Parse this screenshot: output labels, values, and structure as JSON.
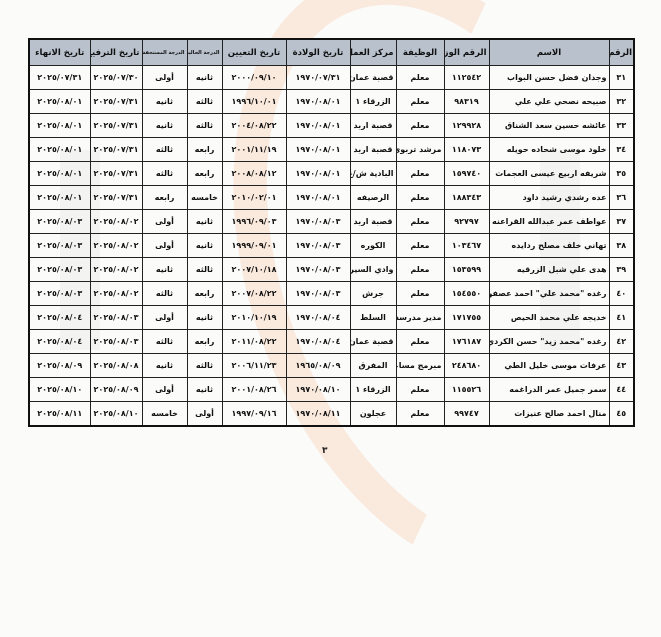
{
  "table": {
    "headers": [
      "الرقم",
      "الاسم",
      "الرقم الوزاري",
      "الوظيفة",
      "مركز العمل",
      "تاريخ الولادة",
      "تاريخ التعيين",
      "الدرجة الحالية",
      "الدرجة المستحقة",
      "تاريخ الترفيع",
      "تاريخ الانهاء"
    ],
    "rows": [
      [
        "٣١",
        "وجدان فضل حسن البواب",
        "١١٢٥٤٢",
        "معلم",
        "قصبة عمان",
        "١٩٧٠/٠٧/٣١",
        "٢٠٠٠/٠٩/١٠",
        "ثانيه",
        "أولى",
        "٢٠٢٥/٠٧/٣٠",
        "٢٠٢٥/٠٧/٣١"
      ],
      [
        "٣٢",
        "صبيحه نصحي علي علي",
        "٩٨٣١٩",
        "معلم",
        "الزرقاء ١",
        "١٩٧٠/٠٨/٠١",
        "١٩٩٦/١٠/٠١",
        "ثالثه",
        "ثانيه",
        "٢٠٢٥/٠٧/٣١",
        "٢٠٢٥/٠٨/٠١"
      ],
      [
        "٣٣",
        "عائشه حسين سعد الشناق",
        "١٢٩٩٢٨",
        "معلم",
        "قصبة اربد",
        "١٩٧٠/٠٨/٠١",
        "٢٠٠٤/٠٨/٢٢",
        "ثالثه",
        "ثانيه",
        "٢٠٢٥/٠٧/٣١",
        "٢٠٢٥/٠٨/٠١"
      ],
      [
        "٣٤",
        "خلود موسى شحاده حويله",
        "١١٨٠٧٣",
        "مرشد تربوي",
        "قصبة اربد",
        "١٩٧٠/٠٨/٠١",
        "٢٠٠١/١١/١٩",
        "رابعه",
        "ثالثه",
        "٢٠٢٥/٠٧/٣١",
        "٢٠٢٥/٠٨/٠١"
      ],
      [
        "٣٥",
        "شريفه اربيع عيسى العجمات",
        "١٥٩٧٤٠",
        "معلم",
        "البادية ش/غ",
        "١٩٧٠/٠٨/٠١",
        "٢٠٠٨/٠٨/١٢",
        "رابعه",
        "ثالثه",
        "٢٠٢٥/٠٧/٣١",
        "٢٠٢٥/٠٨/٠١"
      ],
      [
        "٣٦",
        "عده رشدي رشيد داود",
        "١٨٨٣٤٣",
        "معلم",
        "الرصيفه",
        "١٩٧٠/٠٨/٠١",
        "٢٠١٠/٠٢/٠١",
        "خامسه",
        "رابعه",
        "٢٠٢٥/٠٧/٣١",
        "٢٠٢٥/٠٨/٠١"
      ],
      [
        "٣٧",
        "عواطف عمر عبدالله القراعنه",
        "٩٢٧٩٧",
        "معلم",
        "قصبة اربد",
        "١٩٧٠/٠٨/٠٣",
        "١٩٩٦/٠٩/٠٣",
        "ثانيه",
        "أولى",
        "٢٠٢٥/٠٨/٠٢",
        "٢٠٢٥/٠٨/٠٣"
      ],
      [
        "٣٨",
        "تهاني خلف مصلح ردايده",
        "١٠٣٤٦٧",
        "معلم",
        "الكوره",
        "١٩٧٠/٠٨/٠٣",
        "١٩٩٩/٠٩/٠١",
        "ثانيه",
        "أولى",
        "٢٠٢٥/٠٨/٠٢",
        "٢٠٢٥/٠٨/٠٣"
      ],
      [
        "٣٩",
        "هدى علي شبل الزرقيه",
        "١٥٣٥٩٩",
        "معلم",
        "وادي السير",
        "١٩٧٠/٠٨/٠٣",
        "٢٠٠٧/١٠/١٨",
        "ثالثه",
        "ثانيه",
        "٢٠٢٥/٠٨/٠٢",
        "٢٠٢٥/٠٨/٠٣"
      ],
      [
        "٤٠",
        "رغده \"محمد علي\" احمد عصفوره",
        "١٥٤٥٥٠",
        "معلم",
        "جرش",
        "١٩٧٠/٠٨/٠٣",
        "٢٠٠٧/٠٨/٢٢",
        "رابعه",
        "ثالثه",
        "٢٠٢٥/٠٨/٠٢",
        "٢٠٢٥/٠٨/٠٣"
      ],
      [
        "٤١",
        "خديجه علي محمد الحيص",
        "١٧١٧٥٥",
        "مدير مدرسة",
        "السلط",
        "١٩٧٠/٠٨/٠٤",
        "٢٠١٠/١٠/١٩",
        "ثانيه",
        "أولى",
        "٢٠٢٥/٠٨/٠٣",
        "٢٠٢٥/٠٨/٠٤"
      ],
      [
        "٤٢",
        "رغده \"محمد زيد\" حسن الكردي",
        "١٧٦١٨٧",
        "معلم",
        "قصبة عمان",
        "١٩٧٠/٠٨/٠٤",
        "٢٠١١/٠٨/٢٢",
        "رابعه",
        "ثالثه",
        "٢٠٢٥/٠٨/٠٣",
        "٢٠٢٥/٠٨/٠٤"
      ],
      [
        "٤٣",
        "عرفات موسى خليل الطي",
        "٢٤٨٦٨٠",
        "مبرمج مساعد",
        "المفرق",
        "١٩٦٥/٠٨/٠٩",
        "٢٠٠٦/١١/٢٣",
        "ثالثه",
        "ثانيه",
        "٢٠٢٥/٠٨/٠٨",
        "٢٠٢٥/٠٨/٠٩"
      ],
      [
        "٤٤",
        "سمر جميل عمر الدراغمه",
        "١١٥٥٢٦",
        "معلم",
        "الزرقاء ١",
        "١٩٧٠/٠٨/١٠",
        "٢٠٠١/٠٨/٢٦",
        "ثانيه",
        "أولى",
        "٢٠٢٥/٠٨/٠٩",
        "٢٠٢٥/٠٨/١٠"
      ],
      [
        "٤٥",
        "منال احمد صالح عنيزات",
        "٩٩٧٤٧",
        "معلم",
        "عجلون",
        "١٩٧٠/٠٨/١١",
        "١٩٩٧/٠٩/١٦",
        "أولى",
        "خامسه",
        "٢٠٢٥/٠٨/١٠",
        "٢٠٢٥/٠٨/١١"
      ]
    ]
  },
  "page_number": "٣",
  "colors": {
    "header_bg": "#b8c1cc",
    "watermark": "#f5aa78"
  }
}
